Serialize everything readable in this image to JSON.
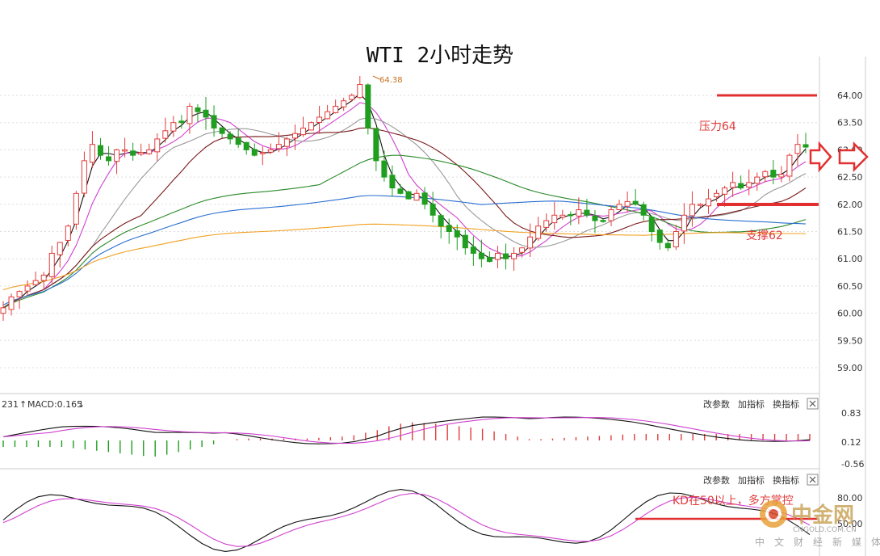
{
  "chart_data": [
    {
      "type": "candlestick",
      "title": "WTI 2小时走势",
      "ylim": [
        58.5,
        64.7
      ],
      "yticks": [
        "64.00",
        "63.50",
        "63.00",
        "62.50",
        "62.00",
        "61.50",
        "61.00",
        "60.50",
        "60.00",
        "59.50",
        "59.00"
      ],
      "peak_label": "64.38",
      "close": [
        60.1,
        60.3,
        60.4,
        60.5,
        60.6,
        60.7,
        61.1,
        61.3,
        61.6,
        62.2,
        62.8,
        63.1,
        62.9,
        62.8,
        63.0,
        63.0,
        62.9,
        62.95,
        63.0,
        63.2,
        63.35,
        63.5,
        63.5,
        63.8,
        63.7,
        63.6,
        63.4,
        63.3,
        63.2,
        63.1,
        63.0,
        62.9,
        62.95,
        63.0,
        63.1,
        63.2,
        63.3,
        63.4,
        63.5,
        63.6,
        63.7,
        63.8,
        63.9,
        64.0,
        64.2,
        63.4,
        62.8,
        62.5,
        62.3,
        62.2,
        62.1,
        62.2,
        62.0,
        61.8,
        61.6,
        61.5,
        61.4,
        61.2,
        61.1,
        61.0,
        60.95,
        61.1,
        61.0,
        61.1,
        61.2,
        61.4,
        61.6,
        61.7,
        61.8,
        61.8,
        61.8,
        61.9,
        61.8,
        61.7,
        61.7,
        61.9,
        62.0,
        62.05,
        62.0,
        61.8,
        61.5,
        61.3,
        61.2,
        61.5,
        61.8,
        62.0,
        62.0,
        62.1,
        62.2,
        62.3,
        62.4,
        62.3,
        62.4,
        62.5,
        62.6,
        62.5,
        62.55,
        62.9,
        63.1,
        63.05
      ],
      "ma_legend": [],
      "annotations": {
        "resistance": "压力64",
        "support": "支撑62"
      }
    },
    {
      "type": "macd",
      "label": "MACD:0.165",
      "prefix": "231",
      "yticks": [
        "0.83",
        "0.12",
        "-0.56"
      ],
      "buttons": [
        "改参数",
        "加指标",
        "换指标"
      ],
      "histogram": [
        -0.1,
        -0.1,
        -0.1,
        -0.1,
        -0.1,
        -0.1,
        -0.12,
        -0.14,
        -0.16,
        -0.18,
        -0.2,
        -0.22,
        -0.24,
        -0.25,
        -0.22,
        -0.18,
        -0.14,
        -0.1,
        -0.06,
        0.0,
        0.02,
        0.03,
        0.03,
        0.03,
        0.03,
        0.03,
        0.03,
        0.04,
        0.05,
        0.06,
        0.08,
        0.12,
        0.16,
        0.22,
        0.26,
        0.28,
        0.27,
        0.26,
        0.24,
        0.22,
        0.2,
        0.18,
        0.14,
        0.1,
        0.06,
        0.02,
        0.02,
        0.03,
        0.04,
        0.05,
        0.06,
        0.07,
        0.08,
        0.09,
        0.1,
        0.1,
        0.1,
        0.1,
        0.1,
        0.1,
        0.1,
        0.1,
        0.1,
        0.1,
        0.1,
        0.1,
        0.1,
        0.1,
        0.1,
        0.1
      ]
    },
    {
      "type": "kd",
      "label": "KD在50以上，多方掌控",
      "yticks": [
        "80.00",
        "50.00"
      ],
      "buttons": [
        "改参数",
        "加指标",
        "换指标"
      ]
    }
  ],
  "watermark": {
    "brand": "中金网",
    "domain": "CNGOLD.COM.CN",
    "tagline": "中文财经新媒体"
  },
  "colors": {
    "up": "#e23c3c",
    "down": "#1f9e1f",
    "resist": "#e23030",
    "ma5": "#111111",
    "ma10": "#d040d0",
    "ma20": "#999999",
    "ma30": "#7a1a1a",
    "ma60": "#2a8a2a",
    "ma120": "#2a6fd0",
    "ma250": "#f0a020"
  }
}
